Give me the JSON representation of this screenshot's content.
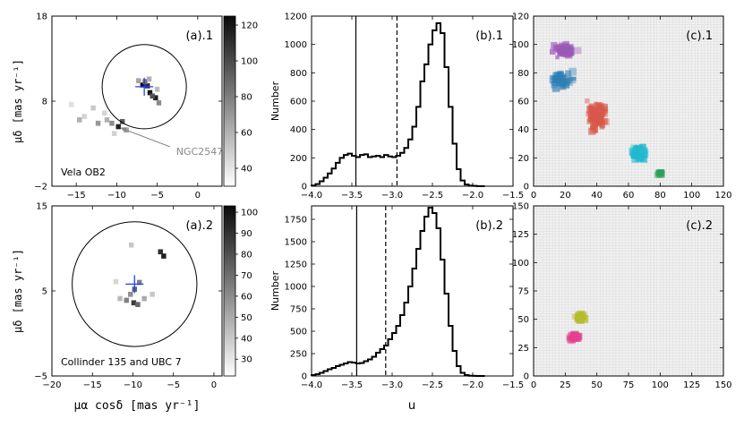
{
  "chart_data": [
    {
      "id": "a1",
      "type": "heatmap",
      "panel_label": "(a).1",
      "xlim": [
        -18,
        3
      ],
      "ylim": [
        -2,
        18
      ],
      "xticks": [
        "−15",
        "−10",
        "−5",
        "0"
      ],
      "yticks": [
        "18",
        "8",
        "−2"
      ],
      "ylabel": "μδ [mas yr⁻¹]",
      "colorbar": {
        "min": 30,
        "max": 125,
        "ticks": [
          "120",
          "100",
          "80",
          "60",
          "40"
        ]
      },
      "circle": {
        "center": [
          -6.6,
          9.7
        ],
        "radius": 5.2
      },
      "cross": [
        -6.6,
        9.7
      ],
      "annotation": "NGC2547",
      "annotation_target": [
        -9.8,
        5.0
      ],
      "corner_label": "Vela OB2",
      "cells": [
        [
          -6.8,
          9.9,
          125
        ],
        [
          -6.2,
          9.8,
          110
        ],
        [
          -5.9,
          9.0,
          120
        ],
        [
          -5.2,
          8.4,
          115
        ],
        [
          -5.6,
          8.6,
          95
        ],
        [
          -6.5,
          10.3,
          80
        ],
        [
          -7.3,
          10.4,
          60
        ],
        [
          -6.0,
          10.6,
          55
        ],
        [
          -5.0,
          9.4,
          50
        ],
        [
          -4.8,
          7.8,
          70
        ],
        [
          -9.8,
          5.0,
          115
        ],
        [
          -9.3,
          5.6,
          90
        ],
        [
          -10.6,
          5.4,
          70
        ],
        [
          -11.2,
          5.8,
          55
        ],
        [
          -8.8,
          4.6,
          60
        ],
        [
          -12.3,
          5.4,
          65
        ],
        [
          -11.5,
          6.6,
          40
        ],
        [
          -12.9,
          7.2,
          45
        ],
        [
          -14.6,
          5.8,
          55
        ],
        [
          -15.6,
          7.6,
          35
        ],
        [
          -10.3,
          4.2,
          40
        ],
        [
          -14.0,
          6.2,
          40
        ]
      ]
    },
    {
      "id": "a2",
      "type": "heatmap",
      "panel_label": "(a).2",
      "xlim": [
        -20,
        1
      ],
      "ylim": [
        -5,
        15
      ],
      "xticks": [
        "−20",
        "−15",
        "−10",
        "−5",
        "0"
      ],
      "yticks": [
        "15",
        "5",
        "−5"
      ],
      "xlabel": "μα cosδ [mas yr⁻¹]",
      "ylabel": "μδ [mas yr⁻¹]",
      "colorbar": {
        "min": 22,
        "max": 103,
        "ticks": [
          "100",
          "90",
          "80",
          "70",
          "60",
          "50",
          "40",
          "30"
        ]
      },
      "circle": {
        "center": [
          -9.8,
          5.8
        ],
        "radius": 7.7
      },
      "cross": [
        -9.8,
        5.8
      ],
      "corner_label": "Collinder 135 and UBC 7",
      "cells": [
        [
          -6.6,
          9.6,
          90
        ],
        [
          -6.2,
          9.1,
          95
        ],
        [
          -9.8,
          5.2,
          70
        ],
        [
          -9.2,
          6.0,
          60
        ],
        [
          -10.3,
          4.6,
          55
        ],
        [
          -10.8,
          3.9,
          60
        ],
        [
          -9.9,
          3.6,
          85
        ],
        [
          -9.4,
          3.4,
          70
        ],
        [
          -8.6,
          4.1,
          45
        ],
        [
          -11.6,
          4.1,
          40
        ],
        [
          -7.6,
          4.6,
          35
        ],
        [
          -10.2,
          10.4,
          35
        ],
        [
          -12.1,
          6.1,
          30
        ]
      ]
    },
    {
      "id": "b1",
      "type": "line",
      "panel_label": "(b).1",
      "xlim": [
        -4.0,
        -1.5
      ],
      "ylim": [
        0,
        1200
      ],
      "xticks": [
        "−4.0",
        "−3.5",
        "−3.0",
        "−2.5",
        "−2.0",
        "−1.5"
      ],
      "yticks": [
        "0",
        "200",
        "400",
        "600",
        "800",
        "1000",
        "1200"
      ],
      "ylabel": "Number",
      "vlines": {
        "solid": -3.45,
        "dashed": -2.94
      },
      "x": [
        -4.0,
        -3.95,
        -3.9,
        -3.85,
        -3.8,
        -3.75,
        -3.7,
        -3.65,
        -3.6,
        -3.55,
        -3.5,
        -3.45,
        -3.4,
        -3.35,
        -3.3,
        -3.25,
        -3.2,
        -3.15,
        -3.1,
        -3.05,
        -3.0,
        -2.95,
        -2.9,
        -2.85,
        -2.8,
        -2.75,
        -2.7,
        -2.65,
        -2.6,
        -2.55,
        -2.5,
        -2.45,
        -2.4,
        -2.35,
        -2.3,
        -2.25,
        -2.2,
        -2.15,
        -2.1,
        -2.05,
        -2.0,
        -1.95,
        -1.9
      ],
      "values": [
        5,
        15,
        35,
        60,
        90,
        125,
        165,
        200,
        220,
        230,
        215,
        205,
        220,
        225,
        205,
        210,
        215,
        205,
        220,
        210,
        205,
        215,
        235,
        270,
        330,
        420,
        560,
        740,
        860,
        1000,
        1100,
        1150,
        1080,
        840,
        560,
        300,
        120,
        40,
        12,
        4,
        2,
        0,
        0
      ]
    },
    {
      "id": "b2",
      "type": "line",
      "panel_label": "(b).2",
      "xlim": [
        -4.0,
        -1.5
      ],
      "ylim": [
        0,
        1900
      ],
      "xticks": [
        "−4.0",
        "−3.5",
        "−3.0",
        "−2.5",
        "−2.0",
        "−1.5"
      ],
      "yticks": [
        "0",
        "250",
        "500",
        "750",
        "1000",
        "1250",
        "1500",
        "1750"
      ],
      "xlabel": "u",
      "ylabel": "Number",
      "vlines": {
        "solid": -3.44,
        "dashed": -3.08
      },
      "x": [
        -4.0,
        -3.95,
        -3.9,
        -3.85,
        -3.8,
        -3.75,
        -3.7,
        -3.65,
        -3.6,
        -3.55,
        -3.5,
        -3.45,
        -3.4,
        -3.35,
        -3.3,
        -3.25,
        -3.2,
        -3.15,
        -3.1,
        -3.05,
        -3.0,
        -2.95,
        -2.9,
        -2.85,
        -2.8,
        -2.75,
        -2.7,
        -2.65,
        -2.6,
        -2.55,
        -2.5,
        -2.45,
        -2.4,
        -2.35,
        -2.3,
        -2.25,
        -2.2,
        -2.15,
        -2.1,
        -2.05,
        -2.0,
        -1.95,
        -1.9
      ],
      "values": [
        10,
        20,
        35,
        55,
        75,
        90,
        110,
        125,
        140,
        155,
        150,
        140,
        145,
        165,
        185,
        215,
        260,
        300,
        340,
        410,
        480,
        560,
        680,
        820,
        1000,
        1200,
        1420,
        1620,
        1780,
        1880,
        1820,
        1650,
        1300,
        920,
        560,
        280,
        110,
        35,
        10,
        3,
        1,
        0,
        0
      ]
    },
    {
      "id": "c1",
      "type": "scatter",
      "panel_label": "(c).1",
      "xlim": [
        0,
        120
      ],
      "ylim": [
        0,
        120
      ],
      "xticks": [
        "0",
        "20",
        "40",
        "60",
        "80",
        "100",
        "120"
      ],
      "yticks": [
        "0",
        "20",
        "40",
        "60",
        "80",
        "100",
        "120"
      ],
      "groups": [
        {
          "color": "#9b59b6",
          "center": [
            20,
            96
          ],
          "spread": [
            9,
            6
          ],
          "count": 60
        },
        {
          "color": "#2f7fb5",
          "center": [
            18,
            75
          ],
          "spread": [
            12,
            7
          ],
          "count": 60
        },
        {
          "color": "#d9574a",
          "center": [
            40,
            50
          ],
          "spread": [
            8,
            15
          ],
          "count": 90
        },
        {
          "color": "#22b8cf",
          "center": [
            67,
            23
          ],
          "spread": [
            7,
            8
          ],
          "count": 40
        },
        {
          "color": "#2ca05a",
          "center": [
            80,
            9
          ],
          "spread": [
            3,
            2
          ],
          "count": 15
        }
      ]
    },
    {
      "id": "c2",
      "type": "scatter",
      "panel_label": "(c).2",
      "xlim": [
        0,
        150
      ],
      "ylim": [
        0,
        150
      ],
      "xticks": [
        "0",
        "25",
        "50",
        "75",
        "100",
        "125",
        "150"
      ],
      "yticks": [
        "0",
        "25",
        "50",
        "75",
        "100",
        "125",
        "150"
      ],
      "groups": [
        {
          "color": "#b7bb2c",
          "center": [
            37,
            52
          ],
          "spread": [
            5,
            6
          ],
          "count": 35
        },
        {
          "color": "#e4428e",
          "center": [
            32,
            34
          ],
          "spread": [
            6,
            4
          ],
          "count": 35
        }
      ]
    }
  ]
}
